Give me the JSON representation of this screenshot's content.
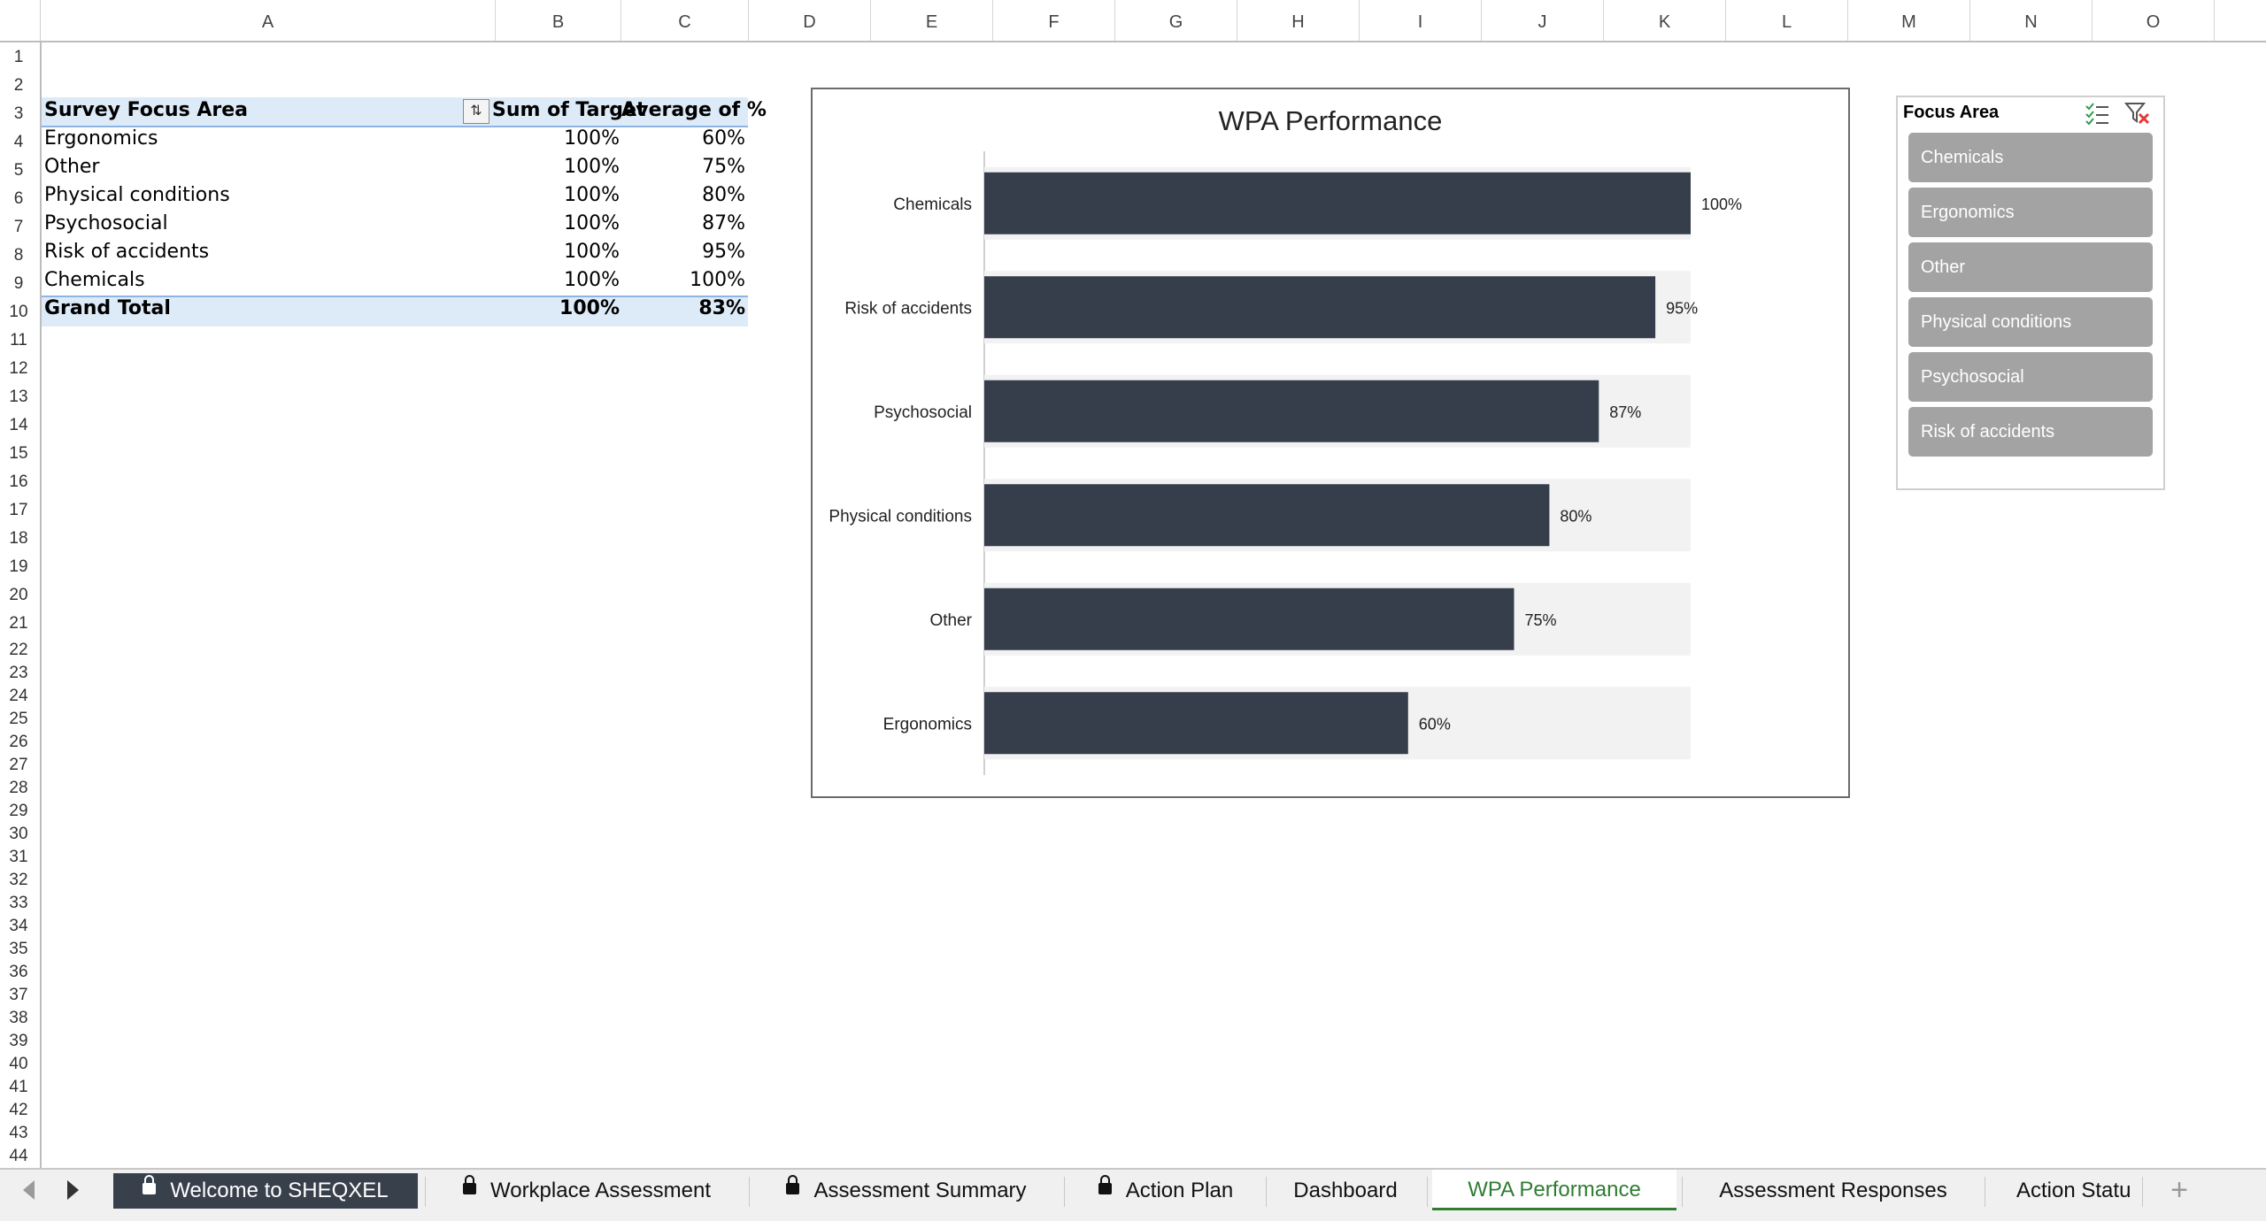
{
  "columns": [
    "A",
    "B",
    "C",
    "D",
    "E",
    "F",
    "G",
    "H",
    "I",
    "J",
    "K",
    "L",
    "M",
    "N",
    "O"
  ],
  "rows": [
    "1",
    "2",
    "3",
    "4",
    "5",
    "6",
    "7",
    "8",
    "9",
    "10",
    "11",
    "12",
    "13",
    "14",
    "15",
    "16",
    "17",
    "18",
    "19",
    "20",
    "21",
    "22",
    "23",
    "24",
    "25",
    "26",
    "27",
    "28",
    "29",
    "30",
    "31",
    "32",
    "33",
    "34",
    "35",
    "36",
    "37",
    "38",
    "39",
    "40",
    "41",
    "42",
    "43",
    "44"
  ],
  "pivot": {
    "headers": [
      "Survey Focus Area",
      "Sum of Target",
      "Average of %"
    ],
    "filter_icon": "filter-sort-icon",
    "rows": [
      {
        "area": "Ergonomics",
        "target": "100%",
        "avg": "60%"
      },
      {
        "area": "Other",
        "target": "100%",
        "avg": "75%"
      },
      {
        "area": "Physical conditions",
        "target": "100%",
        "avg": "80%"
      },
      {
        "area": "Psychosocial",
        "target": "100%",
        "avg": "87%"
      },
      {
        "area": "Risk of accidents",
        "target": "100%",
        "avg": "95%"
      },
      {
        "area": "Chemicals",
        "target": "100%",
        "avg": "100%"
      }
    ],
    "total": {
      "label": "Grand Total",
      "target": "100%",
      "avg": "83%"
    }
  },
  "chart_data": {
    "type": "bar",
    "orientation": "horizontal",
    "title": "WPA Performance",
    "categories": [
      "Chemicals",
      "Risk of accidents",
      "Psychosocial",
      "Physical conditions",
      "Other",
      "Ergonomics"
    ],
    "values": [
      100,
      95,
      87,
      80,
      75,
      60
    ],
    "data_labels": [
      "100%",
      "95%",
      "87%",
      "80%",
      "75%",
      "60%"
    ],
    "target_values": [
      100,
      100,
      100,
      100,
      100,
      100
    ],
    "xlim": [
      0,
      100
    ],
    "bar_color": "#363e4b",
    "target_color": "#f2f2f2",
    "grid": false,
    "legend": "none"
  },
  "slicer": {
    "title": "Focus Area",
    "icons": [
      "multi-select-icon",
      "clear-filter-icon"
    ],
    "items": [
      "Chemicals",
      "Ergonomics",
      "Other",
      "Physical conditions",
      "Psychosocial",
      "Risk of accidents"
    ]
  },
  "tabs": [
    {
      "label": "Welcome to SHEQXEL",
      "locked": true
    },
    {
      "label": "Workplace Assessment",
      "locked": true
    },
    {
      "label": "Assessment Summary",
      "locked": true
    },
    {
      "label": "Action Plan",
      "locked": true
    },
    {
      "label": "Dashboard",
      "locked": false
    },
    {
      "label": "WPA Performance",
      "locked": false
    },
    {
      "label": "Assessment Responses",
      "locked": false
    },
    {
      "label": "Action Statu",
      "locked": false
    }
  ],
  "tab_add": "+",
  "active_tab": "WPA Performance",
  "colors": {
    "accent": "#2e7d32",
    "pivot_header": "#ddeaf7",
    "bar": "#363e4b",
    "slicer_item": "#a3a3a3"
  }
}
